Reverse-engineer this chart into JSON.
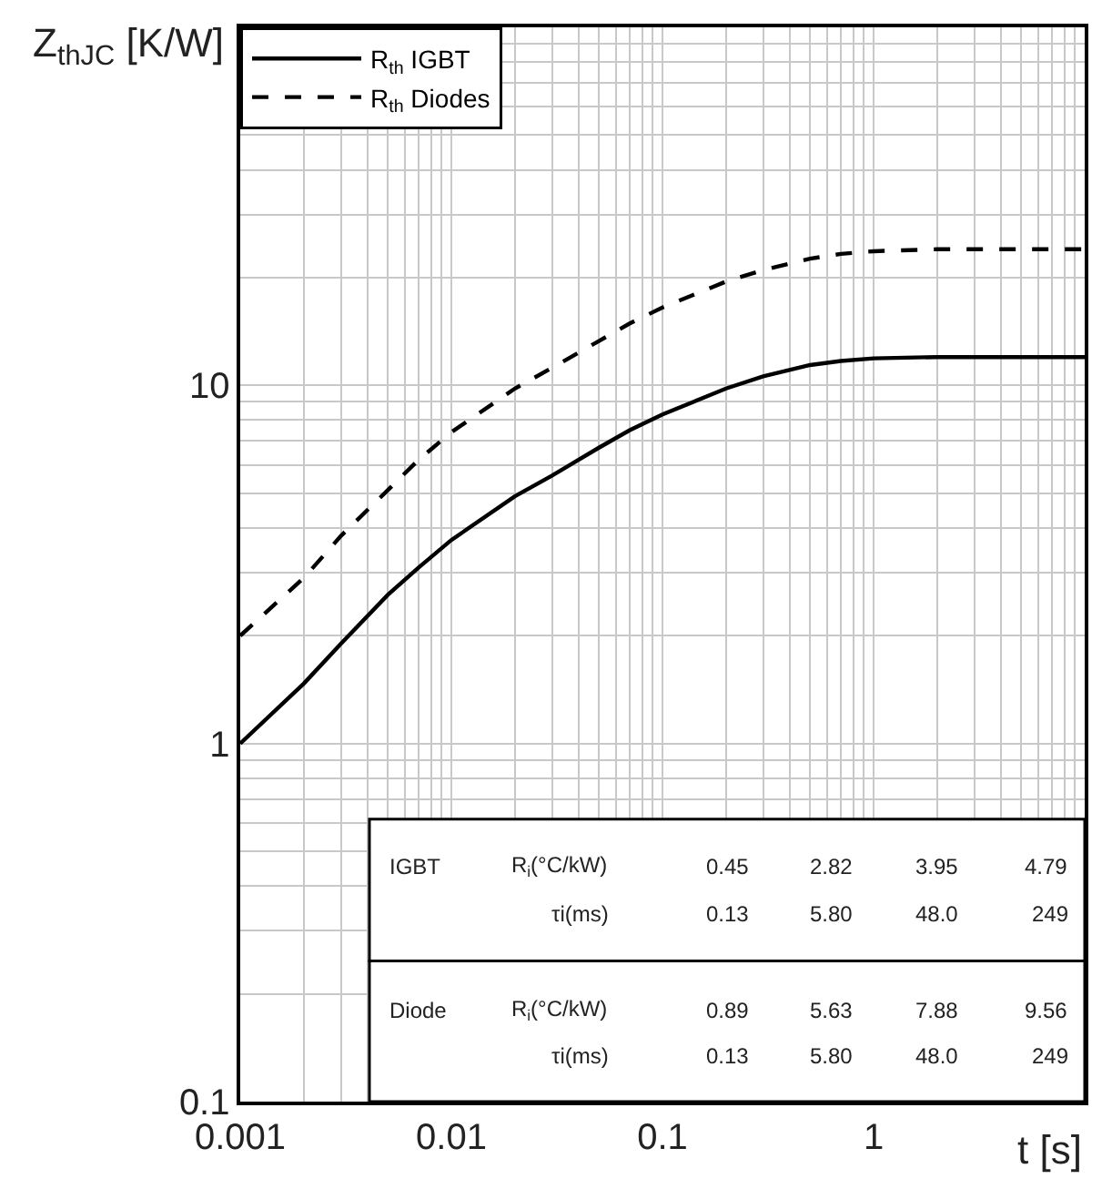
{
  "chart_data": {
    "type": "line",
    "ylabel": "Z$_{thJC}$ [K/W]",
    "xlabel": "t [s]",
    "x": [
      0.001,
      0.002,
      0.003,
      0.005,
      0.007,
      0.01,
      0.02,
      0.03,
      0.05,
      0.07,
      0.1,
      0.2,
      0.3,
      0.5,
      0.7,
      1,
      2,
      3,
      5,
      10
    ],
    "series": [
      {
        "name": "R$_{th}$ IGBT",
        "color": "#000000",
        "line_style": "solid",
        "values": [
          1.0,
          1.47,
          1.9,
          2.6,
          3.1,
          3.7,
          4.9,
          5.6,
          6.7,
          7.5,
          8.3,
          9.8,
          10.6,
          11.4,
          11.7,
          11.9,
          12.0,
          12.0,
          12.0,
          12.0
        ]
      },
      {
        "name": "R$_{th}$ Diodes",
        "color": "#000000",
        "line_style": "dashed",
        "values": [
          2.0,
          2.9,
          3.8,
          5.1,
          6.2,
          7.4,
          9.8,
          11.2,
          13.3,
          14.9,
          16.5,
          19.5,
          21.0,
          22.6,
          23.3,
          23.7,
          24.0,
          24.0,
          24.0,
          24.0
        ]
      }
    ],
    "log": "xy",
    "grid": true,
    "legend": "top left",
    "xlim": [
      0.001,
      10
    ],
    "ylim": [
      0.1,
      100
    ],
    "xticks": [
      0.001,
      {
        "value": 0.002,
        "label": null
      },
      {
        "value": 0.003,
        "label": null
      },
      {
        "value": 0.004,
        "label": null
      },
      {
        "value": 0.005,
        "label": null
      },
      {
        "value": 0.006,
        "label": null
      },
      {
        "value": 0.007,
        "label": null
      },
      {
        "value": 0.008,
        "label": null
      },
      {
        "value": 0.009,
        "label": null
      },
      0.01,
      {
        "value": 0.02,
        "label": null
      },
      {
        "value": 0.03,
        "label": null
      },
      {
        "value": 0.04,
        "label": null
      },
      {
        "value": 0.05,
        "label": null
      },
      {
        "value": 0.06,
        "label": null
      },
      {
        "value": 0.07,
        "label": null
      },
      {
        "value": 0.08,
        "label": null
      },
      {
        "value": 0.09,
        "label": null
      },
      0.1,
      {
        "value": 0.2,
        "label": null
      },
      {
        "value": 0.3,
        "label": null
      },
      {
        "value": 0.4,
        "label": null
      },
      {
        "value": 0.5,
        "label": null
      },
      {
        "value": 0.6,
        "label": null
      },
      {
        "value": 0.7,
        "label": null
      },
      {
        "value": 0.8,
        "label": null
      },
      {
        "value": 0.9,
        "label": null
      },
      1,
      {
        "value": 2,
        "label": null
      },
      {
        "value": 3,
        "label": null
      },
      {
        "value": 4,
        "label": null
      },
      {
        "value": 5,
        "label": null
      },
      {
        "value": 6,
        "label": null
      },
      {
        "value": 7,
        "label": null
      },
      {
        "value": 8,
        "label": null
      },
      {
        "value": 9,
        "label": null
      },
      {
        "value": 10,
        "label": null
      }
    ],
    "yticks": [
      0.1,
      {
        "value": 0.2,
        "label": null
      },
      {
        "value": 0.3,
        "label": null
      },
      {
        "value": 0.4,
        "label": null
      },
      {
        "value": 0.5,
        "label": null
      },
      {
        "value": 0.6,
        "label": null
      },
      {
        "value": 0.7,
        "label": null
      },
      {
        "value": 0.8,
        "label": null
      },
      {
        "value": 0.9,
        "label": null
      },
      1,
      {
        "value": 2,
        "label": null
      },
      {
        "value": 3,
        "label": null
      },
      {
        "value": 4,
        "label": null
      },
      {
        "value": 5,
        "label": null
      },
      {
        "value": 6,
        "label": null
      },
      {
        "value": 7,
        "label": null
      },
      {
        "value": 8,
        "label": null
      },
      {
        "value": 9,
        "label": null
      },
      10,
      {
        "value": 20,
        "label": null
      },
      {
        "value": 30,
        "label": null
      },
      {
        "value": 40,
        "label": null
      },
      {
        "value": 50,
        "label": null
      },
      {
        "value": 60,
        "label": null
      },
      {
        "value": 70,
        "label": null
      },
      {
        "value": 80,
        "label": null
      },
      {
        "value": 90,
        "label": null
      },
      {
        "value": 100,
        "label": null
      }
    ],
    "annotations": [
      "IGBT",
      "R$_{i}$(°C/kW)",
      "0.45",
      "2.82",
      "3.95",
      "4.79",
      "τi(ms)",
      "0.13",
      "5.80",
      "48.0",
      "249",
      "Diode",
      "R$_{i}$(°C/kW)",
      "0.89",
      "5.63",
      "7.88",
      "9.56",
      "τi(ms)",
      "0.13",
      "5.80",
      "48.0",
      "249"
    ]
  }
}
